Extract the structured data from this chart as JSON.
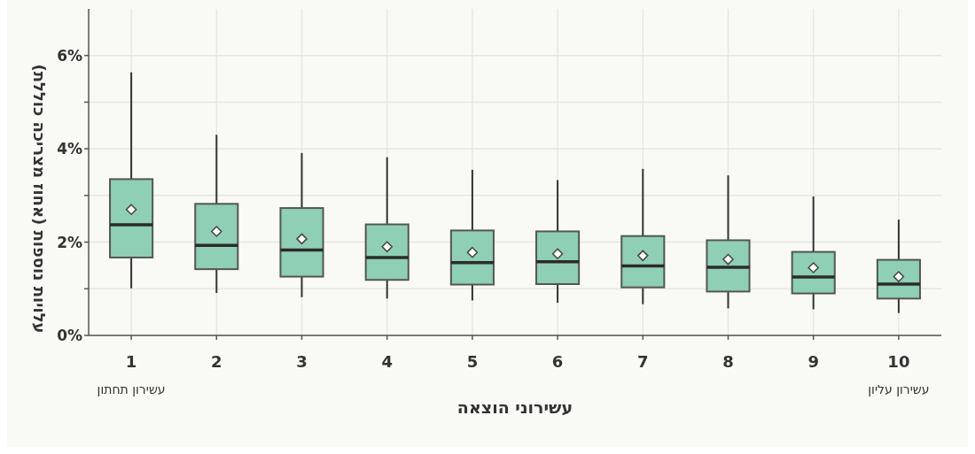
{
  "chart_data": {
    "type": "box",
    "xlabel": "עשירוני הוצאה",
    "ylabel": "עלויות נוספות (אחוז מצריכה כוללת)",
    "categories": [
      "1",
      "2",
      "3",
      "4",
      "5",
      "6",
      "7",
      "8",
      "9",
      "10"
    ],
    "boxes": [
      {
        "low": 1.01,
        "q1": 1.67,
        "median": 2.37,
        "q3": 3.35,
        "high": 5.64,
        "mean": 2.7
      },
      {
        "low": 0.91,
        "q1": 1.42,
        "median": 1.93,
        "q3": 2.82,
        "high": 4.3,
        "mean": 2.23
      },
      {
        "low": 0.82,
        "q1": 1.26,
        "median": 1.83,
        "q3": 2.73,
        "high": 3.91,
        "mean": 2.07
      },
      {
        "low": 0.79,
        "q1": 1.19,
        "median": 1.67,
        "q3": 2.38,
        "high": 3.82,
        "mean": 1.9
      },
      {
        "low": 0.75,
        "q1": 1.09,
        "median": 1.56,
        "q3": 2.25,
        "high": 3.55,
        "mean": 1.78
      },
      {
        "low": 0.7,
        "q1": 1.1,
        "median": 1.58,
        "q3": 2.23,
        "high": 3.33,
        "mean": 1.75
      },
      {
        "low": 0.67,
        "q1": 1.03,
        "median": 1.49,
        "q3": 2.13,
        "high": 3.57,
        "mean": 1.71
      },
      {
        "low": 0.58,
        "q1": 0.94,
        "median": 1.46,
        "q3": 2.04,
        "high": 3.43,
        "mean": 1.63
      },
      {
        "low": 0.56,
        "q1": 0.9,
        "median": 1.25,
        "q3": 1.79,
        "high": 2.98,
        "mean": 1.45
      },
      {
        "low": 0.48,
        "q1": 0.79,
        "median": 1.1,
        "q3": 1.62,
        "high": 2.48,
        "mean": 1.26
      }
    ],
    "color": "#8ecfb5",
    "ylim": [
      0,
      7
    ],
    "yticks": [
      {
        "value": 0,
        "label": "0%"
      },
      {
        "value": 1,
        "label": null
      },
      {
        "value": 2,
        "label": "2%"
      },
      {
        "value": 3,
        "label": null
      },
      {
        "value": 4,
        "label": "4%"
      },
      {
        "value": 5,
        "label": null
      },
      {
        "value": 6,
        "label": "6%"
      }
    ],
    "grid": true,
    "annotations": [
      "עשירון תחתון",
      "עשירון עליון"
    ]
  }
}
